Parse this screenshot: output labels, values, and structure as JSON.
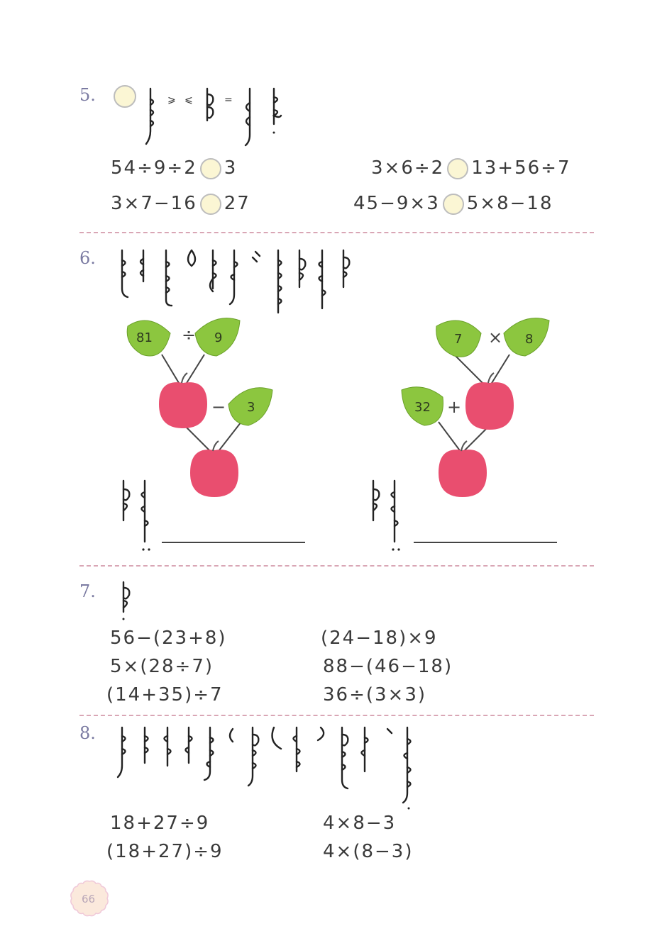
{
  "q5": {
    "number": "5.",
    "symbols": [
      "⩾",
      "⩽",
      "="
    ],
    "rows": [
      {
        "left": "54÷9÷2",
        "right": "3"
      },
      {
        "left": "3×6÷2",
        "right": "13+56÷7"
      },
      {
        "left": "3×7−16",
        "right": "27"
      },
      {
        "left": "45−9×3",
        "right": "5×8−18"
      }
    ]
  },
  "q6": {
    "number": "6.",
    "left_tree": {
      "leaf1": "81",
      "op1": "÷",
      "leaf2": "9",
      "op2": "−",
      "leaf3": "3"
    },
    "right_tree": {
      "leaf1": "7",
      "op1": "×",
      "leaf2": "8",
      "op2": "+",
      "leaf3": "32"
    }
  },
  "q7": {
    "number": "7.",
    "items": [
      "56−(23+8)",
      "(24−18)×9",
      "5×(28÷7)",
      "88−(46−18)",
      "(14+35)÷7",
      "36÷(3×3)"
    ]
  },
  "q8": {
    "number": "8.",
    "items": [
      "18+27÷9",
      "4×8−3",
      "(18+27)÷9",
      "4×(8−3)"
    ]
  },
  "page": {
    "number": "66"
  },
  "colors": {
    "leaf": "#8cc63f",
    "apple": "#e94e6f",
    "circle": "#fbf6d4",
    "divider": "#d9a6b5"
  }
}
